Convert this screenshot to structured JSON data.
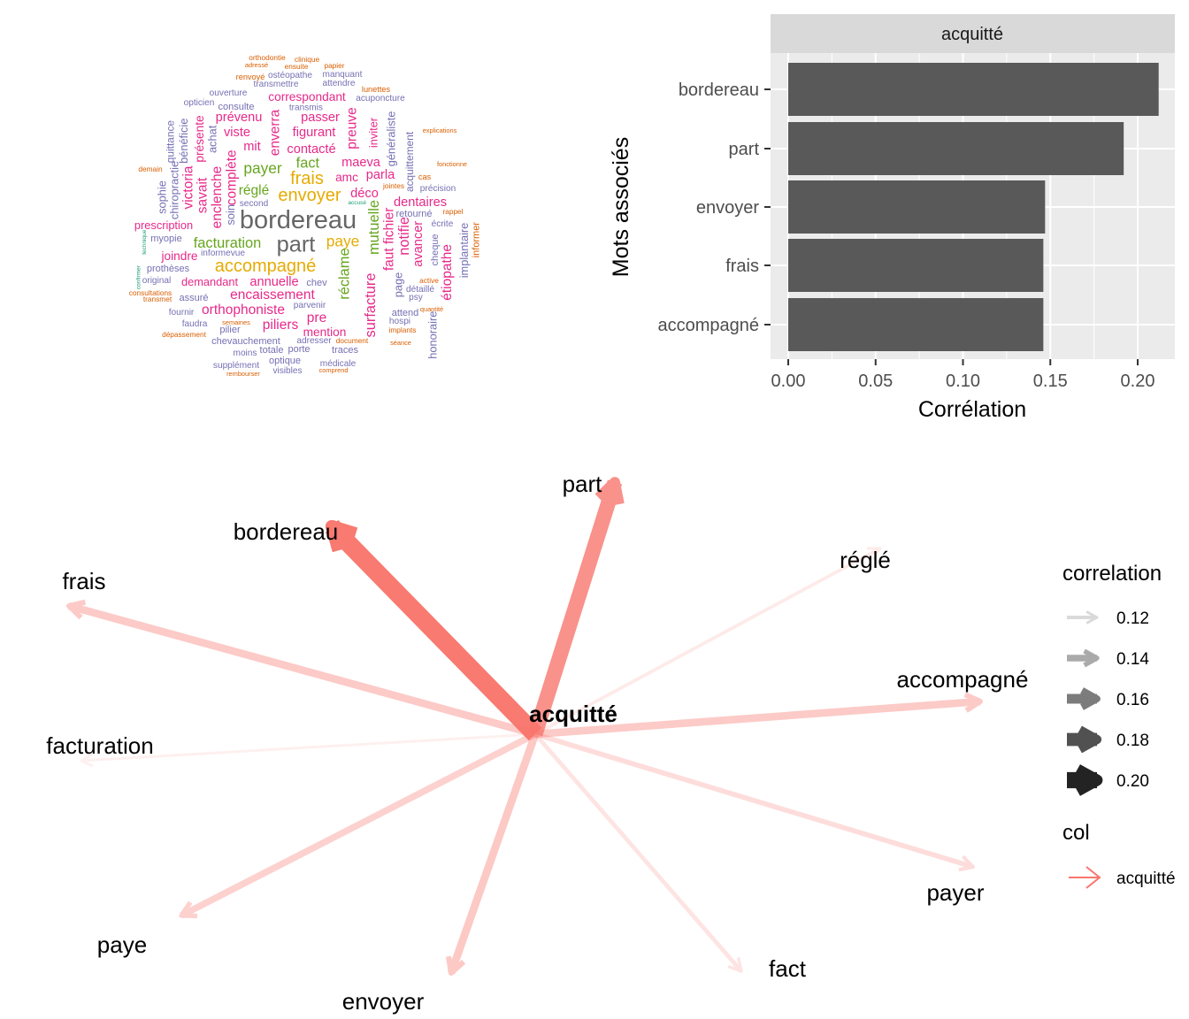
{
  "chart_data": [
    {
      "type": "wordcloud",
      "palette": {
        "grey": "#666666",
        "yellow": "#E6AB02",
        "green": "#66A61E",
        "pink": "#E7298A",
        "purple": "#7570B3",
        "orange": "#D95F02",
        "teal": "#1B9E77"
      },
      "words": [
        {
          "text": "bordereau",
          "weight": 30,
          "color": "grey"
        },
        {
          "text": "part",
          "weight": 26,
          "color": "grey"
        },
        {
          "text": "accompagné",
          "weight": 20,
          "color": "yellow"
        },
        {
          "text": "envoyer",
          "weight": 20,
          "color": "yellow"
        },
        {
          "text": "frais",
          "weight": 20,
          "color": "yellow"
        },
        {
          "text": "paye",
          "weight": 17,
          "color": "yellow"
        },
        {
          "text": "payer",
          "weight": 17,
          "color": "green"
        },
        {
          "text": "fact",
          "weight": 16,
          "color": "green"
        },
        {
          "text": "réglé",
          "weight": 15,
          "color": "green"
        },
        {
          "text": "facturation",
          "weight": 16,
          "color": "green"
        },
        {
          "text": "mutuelle",
          "weight": 16,
          "color": "green"
        },
        {
          "text": "réclame",
          "weight": 16,
          "color": "green"
        },
        {
          "text": "dentaires",
          "weight": 14,
          "color": "pink"
        },
        {
          "text": "encaissement",
          "weight": 15,
          "color": "pink"
        },
        {
          "text": "orthophoniste",
          "weight": 15,
          "color": "pink"
        },
        {
          "text": "piliers",
          "weight": 15,
          "color": "pink"
        },
        {
          "text": "annuelle",
          "weight": 14,
          "color": "pink"
        },
        {
          "text": "demandant",
          "weight": 12,
          "color": "pink"
        },
        {
          "text": "joindre",
          "weight": 13,
          "color": "pink"
        },
        {
          "text": "prescription",
          "weight": 12,
          "color": "pink"
        },
        {
          "text": "correspondant",
          "weight": 13,
          "color": "pink"
        },
        {
          "text": "passer",
          "weight": 14,
          "color": "pink"
        },
        {
          "text": "prévenu",
          "weight": 14,
          "color": "pink"
        },
        {
          "text": "figurant",
          "weight": 14,
          "color": "pink"
        },
        {
          "text": "contacté",
          "weight": 14,
          "color": "pink"
        },
        {
          "text": "maeva",
          "weight": 14,
          "color": "pink"
        },
        {
          "text": "parla",
          "weight": 14,
          "color": "pink"
        },
        {
          "text": "amc",
          "weight": 13,
          "color": "pink"
        },
        {
          "text": "déco",
          "weight": 14,
          "color": "pink"
        },
        {
          "text": "viste",
          "weight": 14,
          "color": "pink"
        },
        {
          "text": "mit",
          "weight": 14,
          "color": "pink"
        },
        {
          "text": "pre",
          "weight": 15,
          "color": "pink"
        },
        {
          "text": "mention",
          "weight": 13,
          "color": "pink"
        },
        {
          "text": "consulte",
          "weight": 10,
          "color": "purple"
        },
        {
          "text": "ouverture",
          "weight": 9,
          "color": "purple"
        },
        {
          "text": "opticien",
          "weight": 9,
          "color": "purple"
        },
        {
          "text": "transmettre",
          "weight": 9,
          "color": "purple"
        },
        {
          "text": "ostéopathe",
          "weight": 9,
          "color": "purple"
        },
        {
          "text": "manquant",
          "weight": 9,
          "color": "purple"
        },
        {
          "text": "attendre",
          "weight": 9,
          "color": "purple"
        },
        {
          "text": "acuponcture",
          "weight": 9,
          "color": "purple"
        },
        {
          "text": "transmis",
          "weight": 9,
          "color": "purple"
        },
        {
          "text": "second",
          "weight": 9,
          "color": "purple"
        },
        {
          "text": "retourné",
          "weight": 10,
          "color": "purple"
        },
        {
          "text": "précision",
          "weight": 9,
          "color": "purple"
        },
        {
          "text": "myopie",
          "weight": 10,
          "color": "purple"
        },
        {
          "text": "prothèses",
          "weight": 10,
          "color": "purple"
        },
        {
          "text": "original",
          "weight": 9,
          "color": "purple"
        },
        {
          "text": "assuré",
          "weight": 10,
          "color": "purple"
        },
        {
          "text": "chev",
          "weight": 10,
          "color": "purple"
        },
        {
          "text": "parvenir",
          "weight": 9,
          "color": "purple"
        },
        {
          "text": "fournir",
          "weight": 9,
          "color": "purple"
        },
        {
          "text": "faudra",
          "weight": 9,
          "color": "purple"
        },
        {
          "text": "pilier",
          "weight": 10,
          "color": "purple"
        },
        {
          "text": "chevauchement",
          "weight": 10,
          "color": "purple"
        },
        {
          "text": "totale",
          "weight": 10,
          "color": "purple"
        },
        {
          "text": "porte",
          "weight": 10,
          "color": "purple"
        },
        {
          "text": "optique",
          "weight": 10,
          "color": "purple"
        },
        {
          "text": "supplément",
          "weight": 9,
          "color": "purple"
        },
        {
          "text": "moins",
          "weight": 9,
          "color": "purple"
        },
        {
          "text": "visibles",
          "weight": 9,
          "color": "purple"
        },
        {
          "text": "médicale",
          "weight": 9,
          "color": "purple"
        },
        {
          "text": "traces",
          "weight": 10,
          "color": "purple"
        },
        {
          "text": "adresser",
          "weight": 9,
          "color": "purple"
        },
        {
          "text": "attend",
          "weight": 10,
          "color": "purple"
        },
        {
          "text": "hospi",
          "weight": 9,
          "color": "purple"
        },
        {
          "text": "détaillé",
          "weight": 9,
          "color": "purple"
        },
        {
          "text": "psy",
          "weight": 9,
          "color": "purple"
        },
        {
          "text": "écrite",
          "weight": 9,
          "color": "purple"
        },
        {
          "text": "informevue",
          "weight": 9,
          "color": "purple"
        },
        {
          "text": "orthodontie",
          "weight": 7,
          "color": "orange"
        },
        {
          "text": "clinique",
          "weight": 7,
          "color": "orange"
        },
        {
          "text": "papier",
          "weight": 7,
          "color": "orange"
        },
        {
          "text": "ensuite",
          "weight": 7,
          "color": "orange"
        },
        {
          "text": "renvoyé",
          "weight": 8,
          "color": "orange"
        },
        {
          "text": "adressé",
          "weight": 6,
          "color": "orange"
        },
        {
          "text": "lunettes",
          "weight": 8,
          "color": "orange"
        },
        {
          "text": "consultations",
          "weight": 7,
          "color": "orange"
        },
        {
          "text": "transmet",
          "weight": 7,
          "color": "orange"
        },
        {
          "text": "dépassement",
          "weight": 7,
          "color": "orange"
        },
        {
          "text": "document",
          "weight": 7,
          "color": "orange"
        },
        {
          "text": "implants",
          "weight": 7,
          "color": "orange"
        },
        {
          "text": "quantité",
          "weight": 6,
          "color": "orange"
        },
        {
          "text": "active",
          "weight": 7,
          "color": "orange"
        },
        {
          "text": "rappel",
          "weight": 7,
          "color": "orange"
        },
        {
          "text": "cas",
          "weight": 8,
          "color": "orange"
        },
        {
          "text": "demain",
          "weight": 7,
          "color": "orange"
        },
        {
          "text": "séance",
          "weight": 6,
          "color": "orange"
        },
        {
          "text": "semaines",
          "weight": 6,
          "color": "orange"
        },
        {
          "text": "comprend",
          "weight": 6,
          "color": "orange"
        },
        {
          "text": "rembourser",
          "weight": 6,
          "color": "orange"
        },
        {
          "text": "explications",
          "weight": 6,
          "color": "orange"
        },
        {
          "text": "fonctionne",
          "weight": 6,
          "color": "orange"
        },
        {
          "text": "jointes",
          "weight": 7,
          "color": "orange"
        },
        {
          "text": "victoria",
          "weight": 15,
          "color": "pink"
        },
        {
          "text": "savait",
          "weight": 15,
          "color": "pink"
        },
        {
          "text": "enclenche",
          "weight": 15,
          "color": "pink"
        },
        {
          "text": "complète",
          "weight": 15,
          "color": "pink"
        },
        {
          "text": "présente",
          "weight": 13,
          "color": "pink"
        },
        {
          "text": "achat",
          "weight": 12,
          "color": "purple"
        },
        {
          "text": "enverra",
          "weight": 15,
          "color": "pink"
        },
        {
          "text": "preuve",
          "weight": 15,
          "color": "pink"
        },
        {
          "text": "faut fichier",
          "weight": 15,
          "color": "pink"
        },
        {
          "text": "notifie",
          "weight": 16,
          "color": "pink"
        },
        {
          "text": "avancer",
          "weight": 14,
          "color": "pink"
        },
        {
          "text": "surfacture",
          "weight": 16,
          "color": "pink"
        },
        {
          "text": "étiopathe",
          "weight": 15,
          "color": "pink"
        },
        {
          "text": "honoraire",
          "weight": 12,
          "color": "purple"
        },
        {
          "text": "implantaire",
          "weight": 12,
          "color": "purple"
        },
        {
          "text": "acquittement",
          "weight": 11,
          "color": "purple"
        },
        {
          "text": "généraliste",
          "weight": 12,
          "color": "purple"
        },
        {
          "text": "inviter",
          "weight": 12,
          "color": "pink"
        },
        {
          "text": "chiropractie",
          "weight": 12,
          "color": "purple"
        },
        {
          "text": "sophie",
          "weight": 12,
          "color": "purple"
        },
        {
          "text": "bénéficie",
          "weight": 12,
          "color": "purple"
        },
        {
          "text": "quittance",
          "weight": 11,
          "color": "purple"
        },
        {
          "text": "soin",
          "weight": 12,
          "color": "purple"
        },
        {
          "text": "cheque",
          "weight": 10,
          "color": "purple"
        },
        {
          "text": "page",
          "weight": 12,
          "color": "purple"
        },
        {
          "text": "informer",
          "weight": 10,
          "color": "orange"
        },
        {
          "text": "accusé",
          "weight": 5,
          "color": "teal"
        },
        {
          "text": "confirmer",
          "weight": 5,
          "color": "teal"
        },
        {
          "text": "technique",
          "weight": 5,
          "color": "teal"
        }
      ]
    },
    {
      "type": "bar",
      "orientation": "horizontal",
      "facet_label": "acquitté",
      "categories": [
        "bordereau",
        "part",
        "envoyer",
        "frais",
        "accompagné"
      ],
      "values": [
        0.212,
        0.192,
        0.147,
        0.146,
        0.146
      ],
      "xlabel": "Corrélation",
      "ylabel": "Mots associés",
      "xticks": [
        "0.00",
        "0.05",
        "0.10",
        "0.15",
        "0.20"
      ],
      "xlim": [
        -0.011,
        0.222
      ],
      "grid": true,
      "bar_color": "#595959",
      "panel_color": "#EBEBEB",
      "strip_color": "#D9D9D9"
    },
    {
      "type": "network",
      "center": "acquitté",
      "edge_color": "#F8766D",
      "edges": [
        {
          "to": "bordereau",
          "correlation": 0.212
        },
        {
          "to": "part",
          "correlation": 0.192
        },
        {
          "to": "envoyer",
          "correlation": 0.147
        },
        {
          "to": "frais",
          "correlation": 0.146
        },
        {
          "to": "accompagné",
          "correlation": 0.146
        },
        {
          "to": "paye",
          "correlation": 0.14
        },
        {
          "to": "payer",
          "correlation": 0.13
        },
        {
          "to": "fact",
          "correlation": 0.125
        },
        {
          "to": "réglé",
          "correlation": 0.12
        },
        {
          "to": "facturation",
          "correlation": 0.115
        }
      ],
      "legend": {
        "correlation_title": "correlation",
        "correlation_levels": [
          "0.12",
          "0.14",
          "0.16",
          "0.18",
          "0.20"
        ],
        "col_title": "col",
        "col_entry": "acquitté"
      }
    }
  ]
}
